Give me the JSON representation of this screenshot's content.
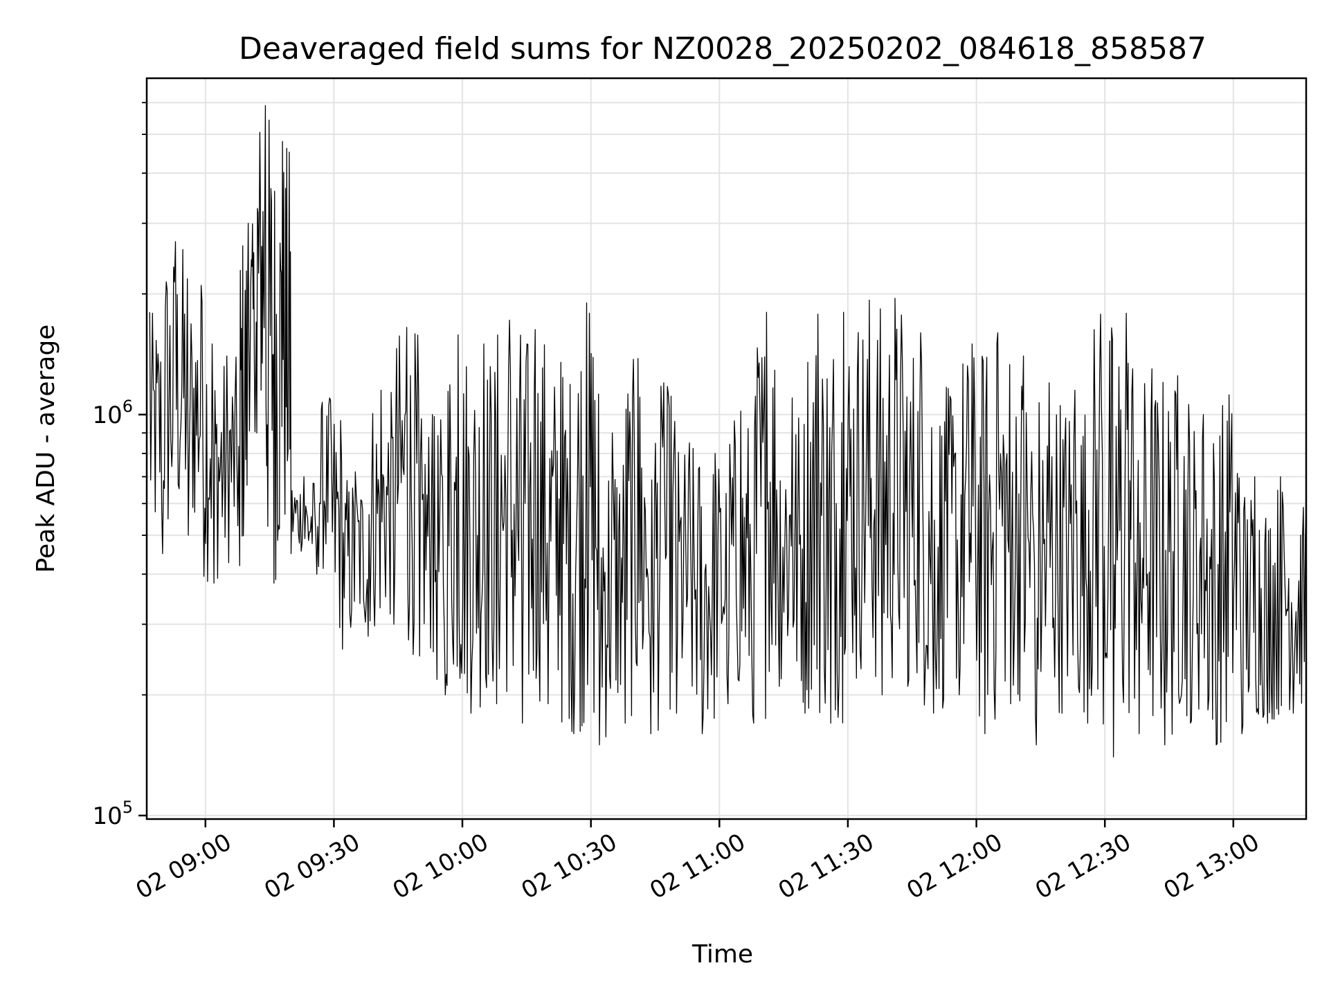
{
  "chart_data": {
    "type": "line",
    "title": "Deaveraged field sums for NZ0028_20250202_084618_858587",
    "xlabel": "Time",
    "ylabel": "Peak ADU - average",
    "y_scale": "log",
    "ylim": [
      98000,
      6900000
    ],
    "xlim": [
      "2025-02-02 08:46:18",
      "2025-02-02 13:17:00"
    ],
    "grid": true,
    "line_color": "#000000",
    "x_ticks": [
      {
        "value": "2025-02-02 09:00",
        "label": "02 09:00"
      },
      {
        "value": "2025-02-02 09:30",
        "label": "02 09:30"
      },
      {
        "value": "2025-02-02 10:00",
        "label": "02 10:00"
      },
      {
        "value": "2025-02-02 10:30",
        "label": "02 10:30"
      },
      {
        "value": "2025-02-02 11:00",
        "label": "02 11:00"
      },
      {
        "value": "2025-02-02 11:30",
        "label": "02 11:30"
      },
      {
        "value": "2025-02-02 12:00",
        "label": "02 12:00"
      },
      {
        "value": "2025-02-02 12:30",
        "label": "02 12:30"
      },
      {
        "value": "2025-02-02 13:00",
        "label": "02 13:00"
      }
    ],
    "y_ticks": [
      {
        "value": 100000,
        "base": "10",
        "exp": "5"
      },
      {
        "value": 1000000,
        "base": "10",
        "exp": "6"
      }
    ],
    "series": [
      {
        "x": [
          "2025-02-02 08:47",
          "2025-02-02 08:50",
          "2025-02-02 08:53",
          "2025-02-02 08:56",
          "2025-02-02 08:59",
          "2025-02-02 09:02",
          "2025-02-02 09:05",
          "2025-02-02 09:08",
          "2025-02-02 09:10",
          "2025-02-02 09:12",
          "2025-02-02 09:14",
          "2025-02-02 09:16",
          "2025-02-02 09:18",
          "2025-02-02 09:20",
          "2025-02-02 09:23",
          "2025-02-02 09:26",
          "2025-02-02 09:29",
          "2025-02-02 09:32",
          "2025-02-02 09:35",
          "2025-02-02 09:38",
          "2025-02-02 09:41",
          "2025-02-02 09:44",
          "2025-02-02 09:47",
          "2025-02-02 09:50",
          "2025-02-02 09:53",
          "2025-02-02 09:56",
          "2025-02-02 09:59",
          "2025-02-02 10:02",
          "2025-02-02 10:05",
          "2025-02-02 10:08",
          "2025-02-02 10:11",
          "2025-02-02 10:14",
          "2025-02-02 10:17",
          "2025-02-02 10:20",
          "2025-02-02 10:23",
          "2025-02-02 10:26",
          "2025-02-02 10:29",
          "2025-02-02 10:32",
          "2025-02-02 10:35",
          "2025-02-02 10:38",
          "2025-02-02 10:41",
          "2025-02-02 10:44",
          "2025-02-02 10:47",
          "2025-02-02 10:50",
          "2025-02-02 10:53",
          "2025-02-02 10:56",
          "2025-02-02 10:59",
          "2025-02-02 11:02",
          "2025-02-02 11:05",
          "2025-02-02 11:08",
          "2025-02-02 11:11",
          "2025-02-02 11:14",
          "2025-02-02 11:17",
          "2025-02-02 11:20",
          "2025-02-02 11:23",
          "2025-02-02 11:26",
          "2025-02-02 11:29",
          "2025-02-02 11:32",
          "2025-02-02 11:35",
          "2025-02-02 11:38",
          "2025-02-02 11:41",
          "2025-02-02 11:44",
          "2025-02-02 11:47",
          "2025-02-02 11:50",
          "2025-02-02 11:53",
          "2025-02-02 11:56",
          "2025-02-02 11:59",
          "2025-02-02 12:02",
          "2025-02-02 12:05",
          "2025-02-02 12:08",
          "2025-02-02 12:11",
          "2025-02-02 12:14",
          "2025-02-02 12:17",
          "2025-02-02 12:20",
          "2025-02-02 12:23",
          "2025-02-02 12:26",
          "2025-02-02 12:29",
          "2025-02-02 12:32",
          "2025-02-02 12:35",
          "2025-02-02 12:38",
          "2025-02-02 12:41",
          "2025-02-02 12:44",
          "2025-02-02 12:47",
          "2025-02-02 12:50",
          "2025-02-02 12:53",
          "2025-02-02 12:56",
          "2025-02-02 12:59",
          "2025-02-02 13:02",
          "2025-02-02 13:05",
          "2025-02-02 13:08",
          "2025-02-02 13:11",
          "2025-02-02 13:14",
          "2025-02-02 13:17"
        ],
        "y": [
          1800000,
          450000,
          2700000,
          500000,
          2100000,
          380000,
          1400000,
          420000,
          3000000,
          900000,
          5900000,
          380000,
          4800000,
          450000,
          700000,
          400000,
          1100000,
          260000,
          720000,
          280000,
          1150000,
          300000,
          1650000,
          250000,
          1000000,
          200000,
          1580000,
          180000,
          1500000,
          190000,
          1720000,
          170000,
          1630000,
          190000,
          1350000,
          160000,
          1900000,
          150000,
          900000,
          170000,
          1380000,
          160000,
          1200000,
          180000,
          850000,
          160000,
          800000,
          190000,
          1020000,
          170000,
          1800000,
          210000,
          1100000,
          180000,
          1780000,
          170000,
          1800000,
          220000,
          1930000,
          200000,
          1950000,
          210000,
          1600000,
          180000,
          1170000,
          200000,
          1500000,
          160000,
          1600000,
          190000,
          1400000,
          150000,
          1200000,
          180000,
          1150000,
          170000,
          1780000,
          140000,
          1790000,
          160000,
          1300000,
          150000,
          1250000,
          170000,
          1000000,
          150000,
          1120000,
          160000,
          700000,
          170000,
          700000,
          180000,
          600000
        ],
        "note_minima": []
      }
    ]
  }
}
